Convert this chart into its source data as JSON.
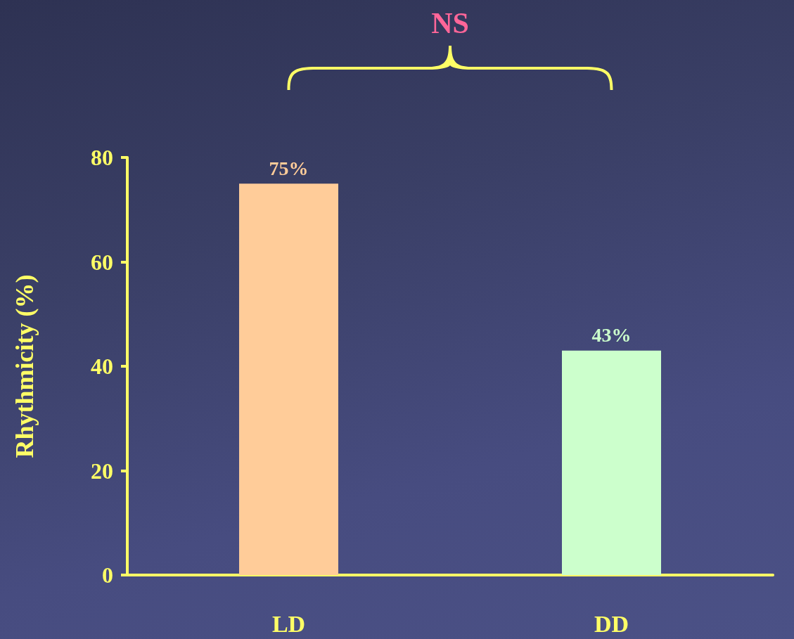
{
  "chart_data": {
    "type": "bar",
    "ylabel": "Rhythmicity (%)",
    "annotations": [
      "NS"
    ],
    "categories": [
      "LD",
      "DD"
    ],
    "values": [
      75,
      43
    ],
    "colors": [
      "#ffcc99",
      "#ccffcc"
    ],
    "value_labels": [
      "75%",
      "43%"
    ],
    "ylim": [
      0,
      80
    ],
    "yticks": [
      0,
      20,
      40,
      60,
      80
    ]
  }
}
